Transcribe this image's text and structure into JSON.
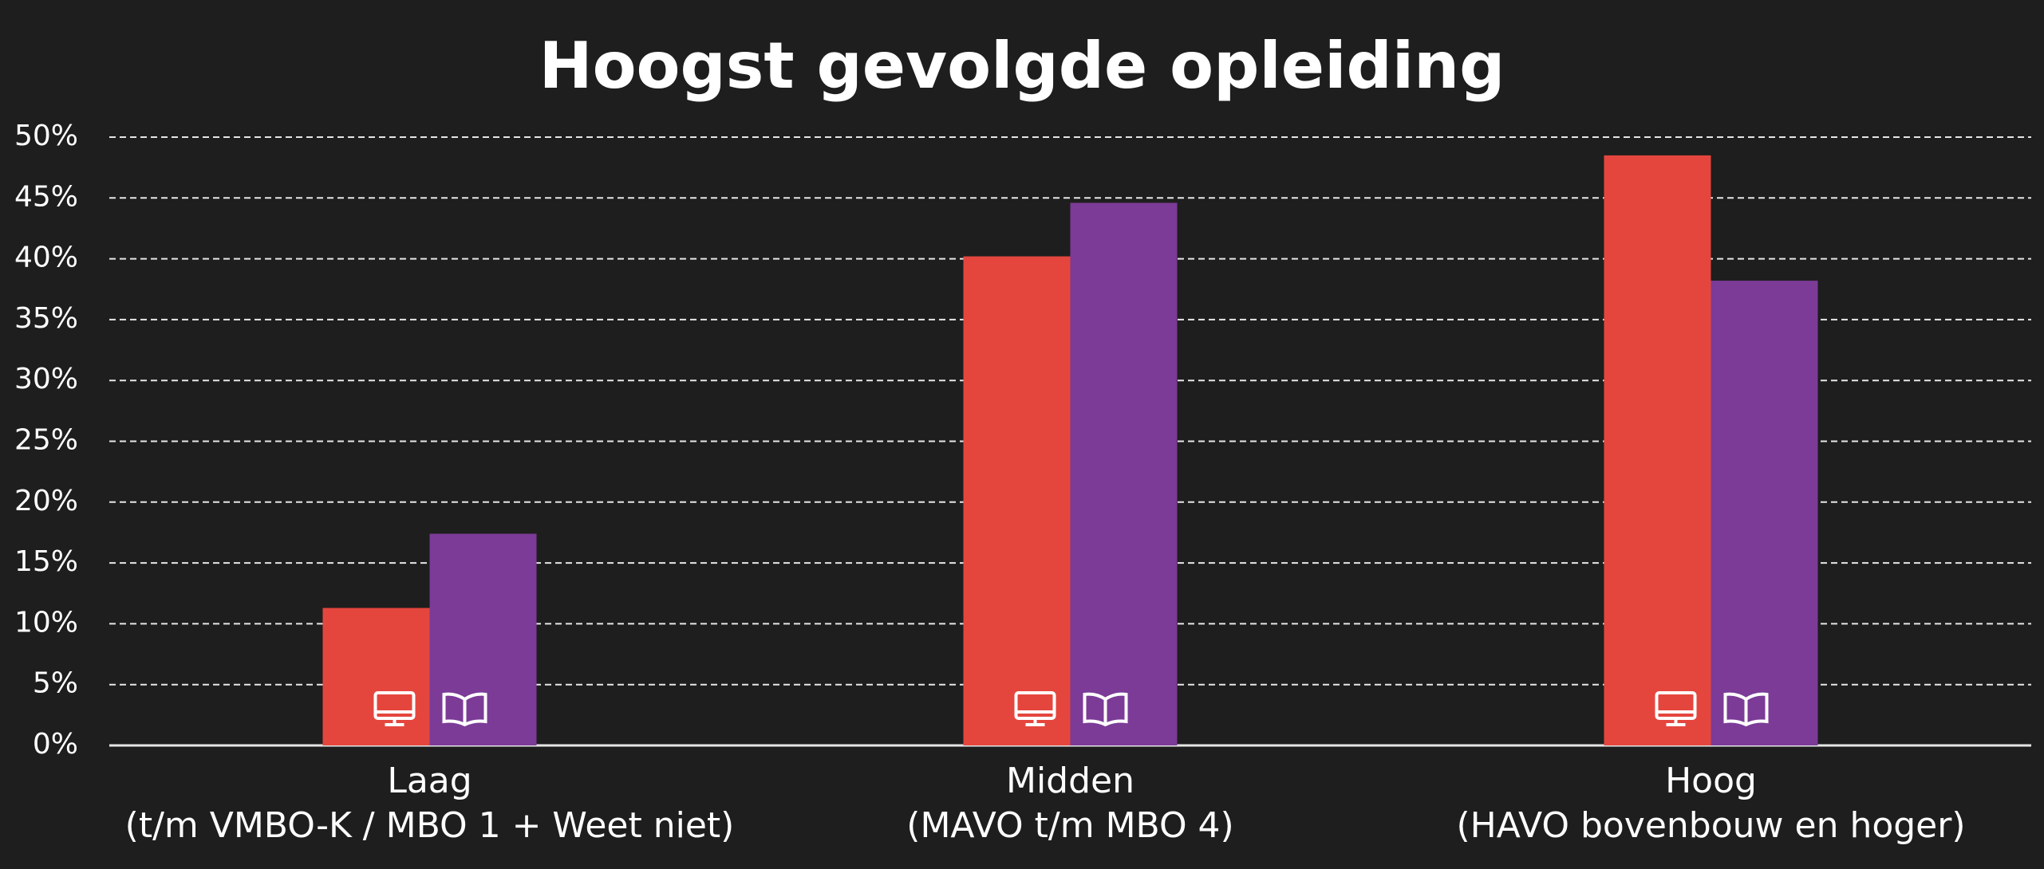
{
  "chart_data": {
    "type": "bar",
    "title": "Hoogst gevolgde opleiding",
    "categories": [
      "Laag\n(t/m VMBO-K / MBO 1 + Weet niet)",
      "Midden\n(MAVO t/m MBO 4)",
      "Hoog\n(HAVO bovenbouw en hoger)"
    ],
    "series": [
      {
        "color": "#e4463e",
        "values": [
          11.3,
          40.2,
          48.5
        ]
      },
      {
        "color": "#7b3b97",
        "values": [
          17.4,
          44.6,
          38.2
        ]
      }
    ],
    "ylim": [
      0,
      50
    ],
    "yticks": [
      {
        "value": 0,
        "label": "0%"
      },
      {
        "value": 5,
        "label": "5%"
      },
      {
        "value": 10,
        "label": "10%"
      },
      {
        "value": 15,
        "label": "15%"
      },
      {
        "value": 20,
        "label": "20%"
      },
      {
        "value": 25,
        "label": "25%"
      },
      {
        "value": 30,
        "label": "30%"
      },
      {
        "value": 35,
        "label": "35%"
      },
      {
        "value": 40,
        "label": "40%"
      },
      {
        "value": 45,
        "label": "45%"
      },
      {
        "value": 50,
        "label": "50%"
      }
    ],
    "grid": true
  }
}
